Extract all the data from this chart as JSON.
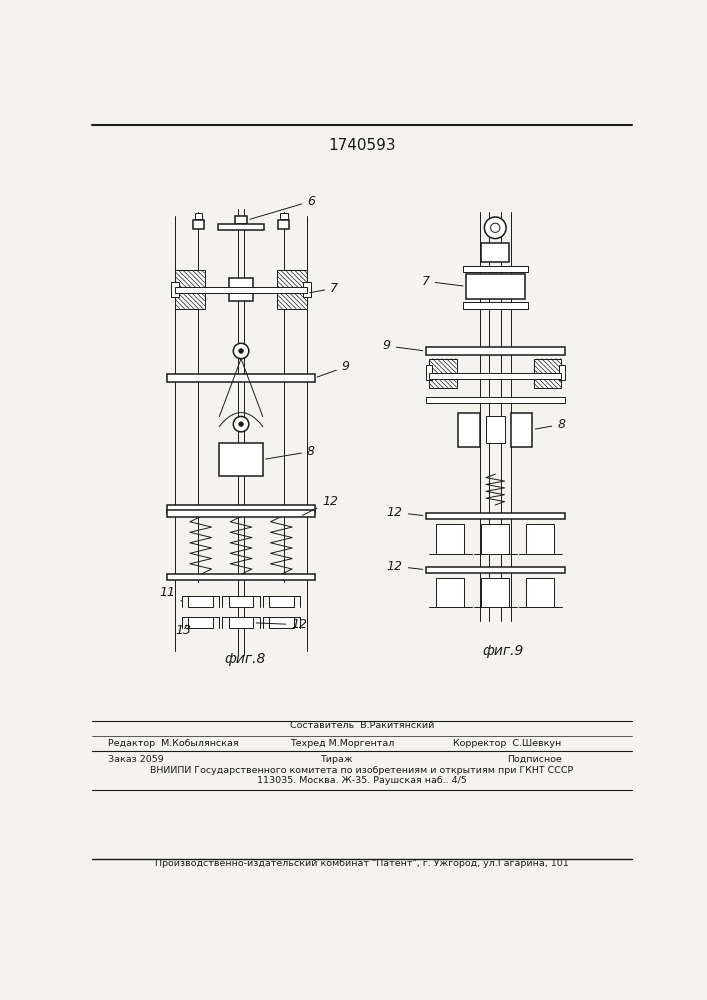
{
  "patent_number": "1740593",
  "fig8_label": "фиг.8",
  "fig9_label": "фиг.9",
  "footer_line0": "Составитель  В.Ракитянский",
  "footer_line1_col1": "Редактор  М.Кобылянская",
  "footer_line1_col2": "Техред М.Моргентал",
  "footer_line1_col3": "Корректор  С.Шевкун",
  "footer_line2_col1": "Заказ 2059",
  "footer_line2_col2": "Тираж",
  "footer_line2_col3": "Подписное",
  "footer_line3": "ВНИИПИ Государственного комитета по изобретениям и открытиям при ГКНТ СССР",
  "footer_line4": "113035. Москва. Ж-35. Раушская наб.. 4/5",
  "footer_line5": "Производственно-издательский комбинат \"Патент\", г. Ужгород, ул.Гагарина, 101",
  "bg_color": "#f5f3ef",
  "line_color": "#1a1a1a",
  "hatch_color": "#555555",
  "label_6": "6",
  "label_7a": "7",
  "label_7b": "7",
  "label_8a": "8",
  "label_8b": "8",
  "label_9a": "9",
  "label_9b": "9",
  "label_11": "11",
  "label_12a": "12",
  "label_12b": "12",
  "label_12c": "12",
  "label_12d": "12",
  "label_13": "13"
}
